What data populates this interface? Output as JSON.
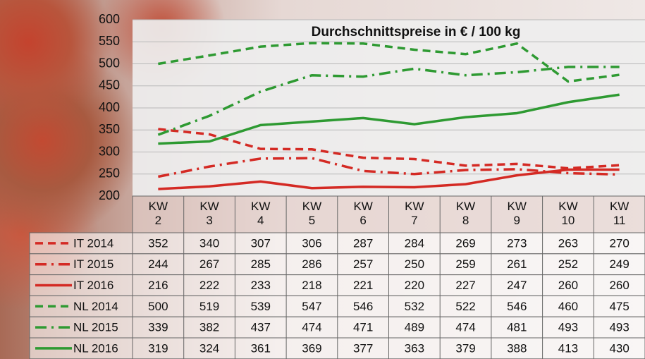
{
  "chart_data": {
    "type": "line",
    "title": "Durchschnittspreise in € / 100 kg",
    "categories": [
      "KW 2",
      "KW 3",
      "KW 4",
      "KW 5",
      "KW 6",
      "KW 7",
      "KW 8",
      "KW 9",
      "KW 10",
      "KW 11"
    ],
    "ylim": [
      200,
      600
    ],
    "yticks": [
      200,
      250,
      300,
      350,
      400,
      450,
      500,
      550,
      600
    ],
    "grid": true,
    "series": [
      {
        "name": "IT 2014",
        "color": "#d42a24",
        "dash": "dashed",
        "values": [
          352,
          340,
          307,
          306,
          287,
          284,
          269,
          273,
          263,
          270
        ]
      },
      {
        "name": "IT 2015",
        "color": "#d42a24",
        "dash": "dashdot",
        "values": [
          244,
          267,
          285,
          286,
          257,
          250,
          259,
          261,
          252,
          249
        ]
      },
      {
        "name": "IT 2016",
        "color": "#d42a24",
        "dash": "solid",
        "values": [
          216,
          222,
          233,
          218,
          221,
          220,
          227,
          247,
          260,
          260
        ]
      },
      {
        "name": "NL 2014",
        "color": "#2e9a32",
        "dash": "dashed",
        "values": [
          500,
          519,
          539,
          547,
          546,
          532,
          522,
          546,
          460,
          475
        ]
      },
      {
        "name": "NL 2015",
        "color": "#2e9a32",
        "dash": "dashdot",
        "values": [
          339,
          382,
          437,
          474,
          471,
          489,
          474,
          481,
          493,
          493
        ]
      },
      {
        "name": "NL 2016",
        "color": "#2e9a32",
        "dash": "solid",
        "values": [
          319,
          324,
          361,
          369,
          377,
          363,
          379,
          388,
          413,
          430
        ]
      }
    ]
  }
}
